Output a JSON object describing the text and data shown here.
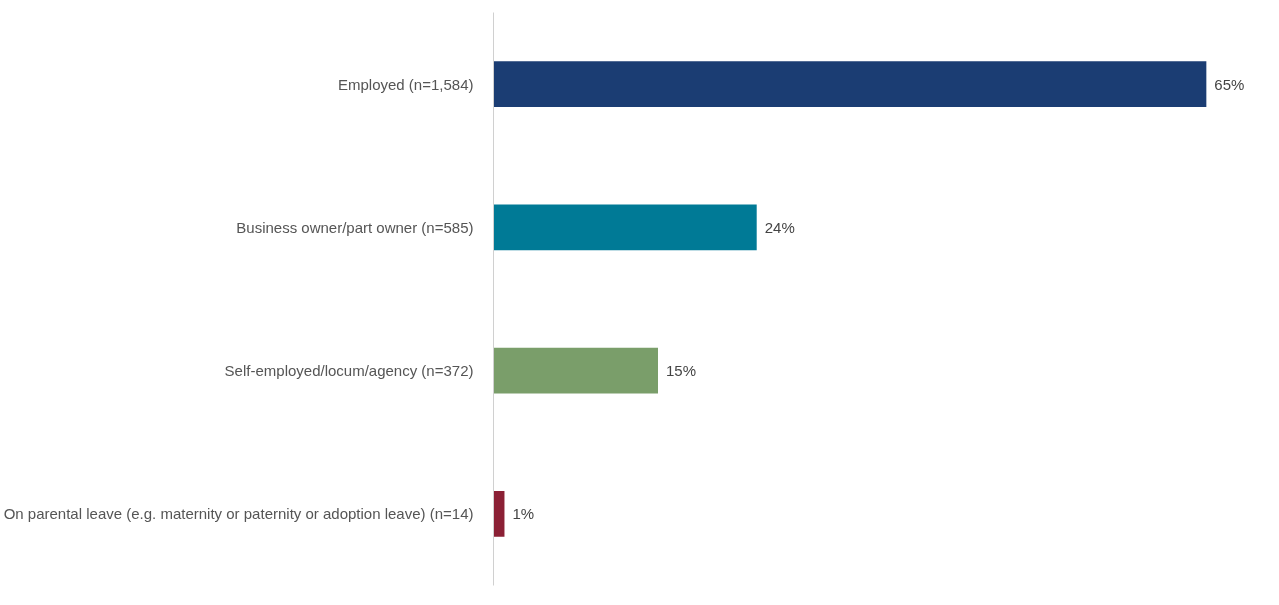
{
  "chart_data": {
    "type": "bar",
    "orientation": "horizontal",
    "categories": [
      "Employed (n=1,584)",
      "Business owner/part owner (n=585)",
      "Self-employed/locum/agency (n=372)",
      "On parental leave (e.g. maternity or paternity or adoption leave) (n=14)"
    ],
    "values": [
      65,
      24,
      15,
      1
    ],
    "colors": [
      "#1b3d73",
      "#007a96",
      "#7a9e6a",
      "#8b2035"
    ],
    "value_labels": [
      "65%",
      "24%",
      "15%",
      "1%"
    ],
    "grid": false,
    "tick_labels": "y"
  }
}
